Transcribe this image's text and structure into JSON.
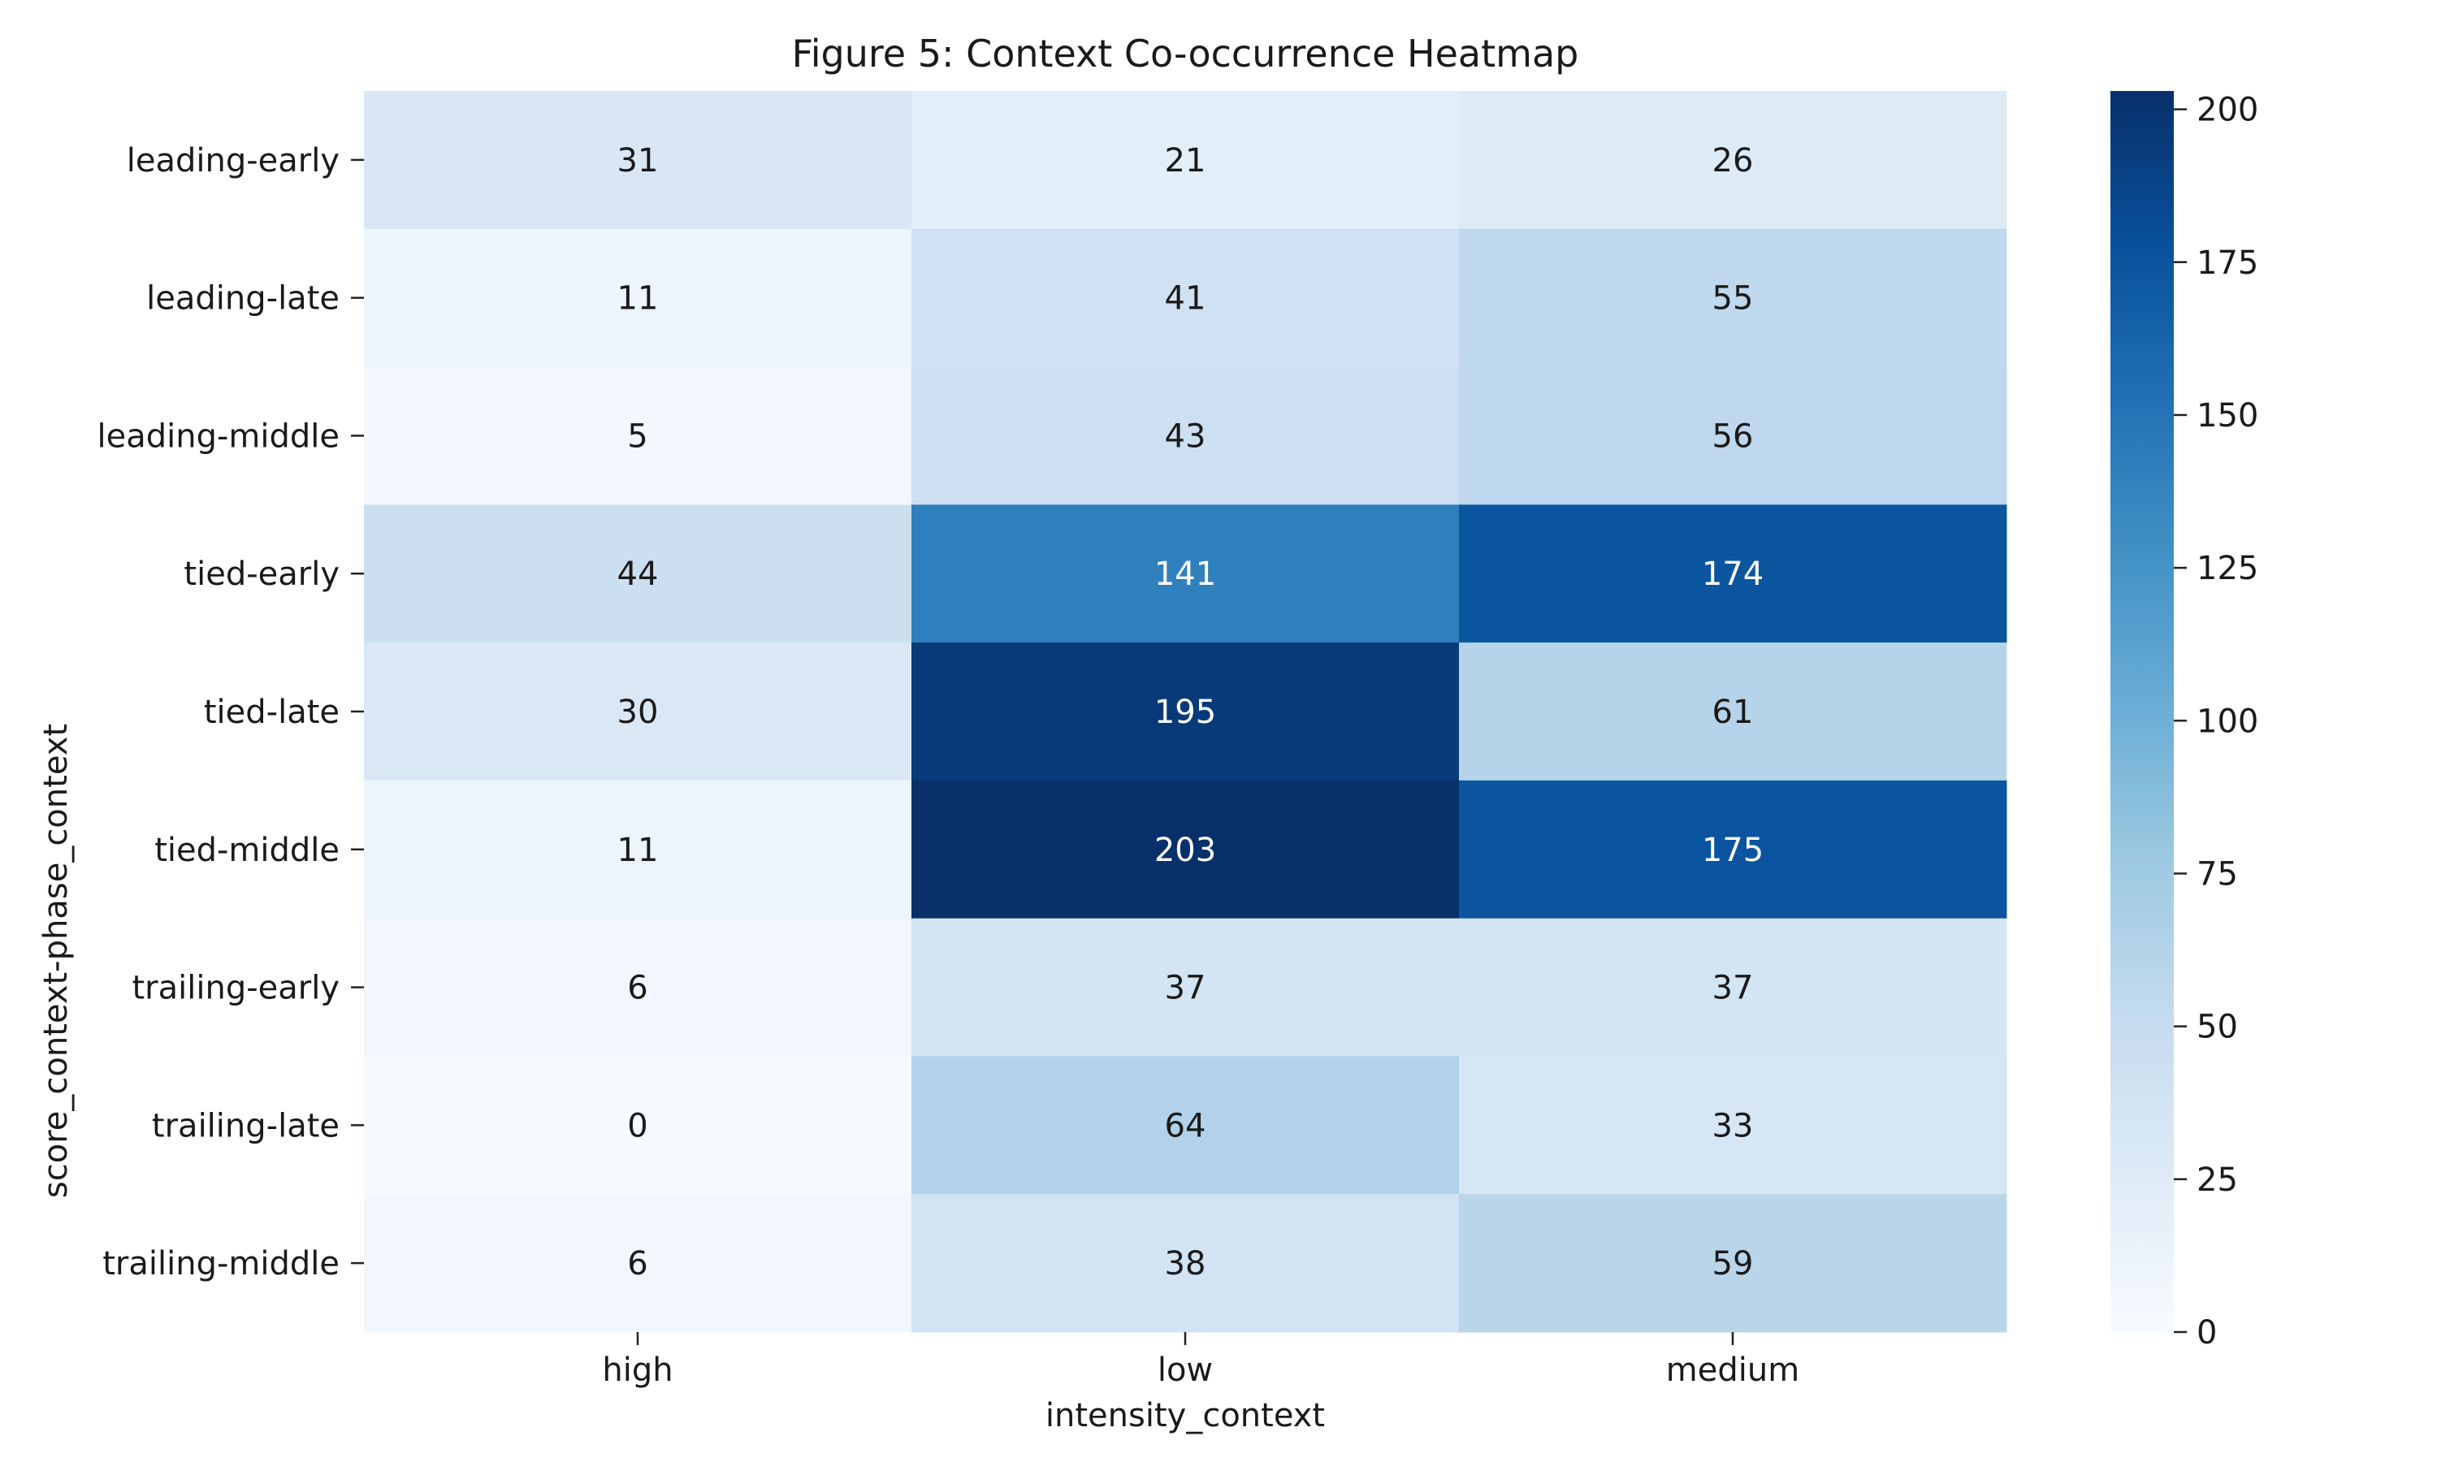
{
  "chart_data": {
    "type": "heatmap",
    "title": "Figure 5: Context Co-occurrence Heatmap",
    "xlabel": "intensity_context",
    "ylabel": "score_context-phase_context",
    "x_categories": [
      "high",
      "low",
      "medium"
    ],
    "y_categories": [
      "leading-early",
      "leading-late",
      "leading-middle",
      "tied-early",
      "tied-late",
      "tied-middle",
      "trailing-early",
      "trailing-late",
      "trailing-middle"
    ],
    "values": [
      [
        31,
        21,
        26
      ],
      [
        11,
        41,
        55
      ],
      [
        5,
        43,
        56
      ],
      [
        44,
        141,
        174
      ],
      [
        30,
        195,
        61
      ],
      [
        11,
        203,
        175
      ],
      [
        6,
        37,
        37
      ],
      [
        0,
        64,
        33
      ],
      [
        6,
        38,
        59
      ]
    ],
    "colormap": "Blues",
    "colorbar": {
      "range": [
        0,
        203
      ],
      "ticks": [
        0,
        25,
        50,
        75,
        100,
        125,
        150,
        175,
        200
      ]
    },
    "grid": false,
    "legend": "colorbar-right"
  }
}
